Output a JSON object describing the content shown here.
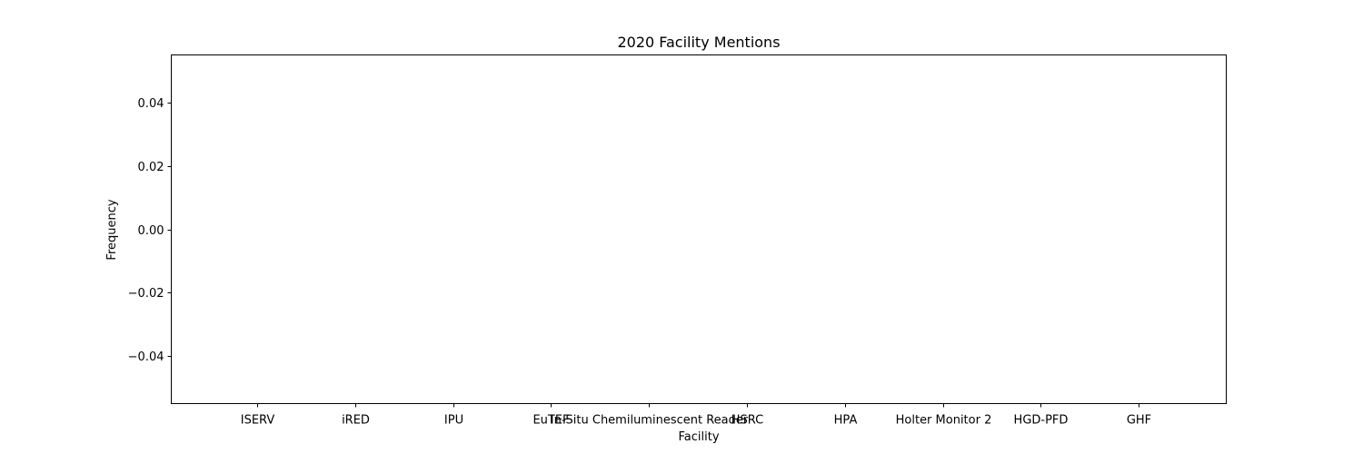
{
  "chart_data": {
    "type": "bar",
    "title": "2020 Facility Mentions",
    "xlabel": "Facility",
    "ylabel": "Frequency",
    "categories": [
      "ISERV",
      "iRED",
      "IPU",
      "EuTEF",
      "In-Situ Chemiluminescent Reader",
      "HSRC",
      "HPA",
      "Holter Monitor 2",
      "HGD-PFD",
      "GHF"
    ],
    "values": [
      0,
      0,
      0,
      0,
      0,
      0,
      0,
      0,
      0,
      0
    ],
    "ylim": [
      -0.055,
      0.055
    ],
    "yticks": [
      -0.04,
      -0.02,
      0.0,
      0.02,
      0.04
    ],
    "ytick_labels": [
      "−0.04",
      "−0.02",
      "0.00",
      "0.02",
      "0.04"
    ],
    "grid": false,
    "bar_color": "#1f77b4"
  }
}
